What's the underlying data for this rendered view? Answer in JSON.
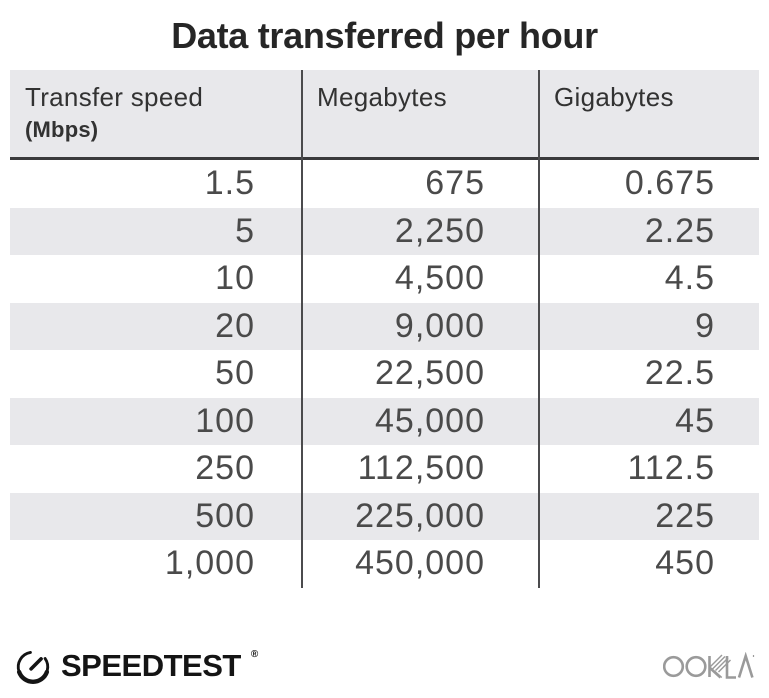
{
  "title": "Data transferred per hour",
  "table": {
    "columns": [
      {
        "label": "Transfer speed",
        "sublabel": "(Mbps)"
      },
      {
        "label": "Megabytes",
        "sublabel": ""
      },
      {
        "label": "Gigabytes",
        "sublabel": ""
      }
    ],
    "rows": [
      [
        "1.5",
        "675",
        "0.675"
      ],
      [
        "5",
        "2,250",
        "2.25"
      ],
      [
        "10",
        "4,500",
        "4.5"
      ],
      [
        "20",
        "9,000",
        "9"
      ],
      [
        "50",
        "22,500",
        "22.5"
      ],
      [
        "100",
        "45,000",
        "45"
      ],
      [
        "250",
        "112,500",
        "112.5"
      ],
      [
        "500",
        "225,000",
        "225"
      ],
      [
        "1,000",
        "450,000",
        "450"
      ]
    ]
  },
  "footer": {
    "brand": "SPEEDTEST",
    "brand_mark": "®",
    "company": "OOKLA"
  },
  "colors": {
    "header_bg": "#e8e8eb",
    "stripe": "#e8e8eb",
    "divider": "#4b4b4d",
    "header_border": "#3a3a3c",
    "title_text": "#262626",
    "data_text": "#4a4a4a",
    "brand_black": "#141414",
    "ookla_gray": "#9a9a9a"
  },
  "chart_data": {
    "type": "table",
    "title": "Data transferred per hour",
    "columns": [
      "Transfer speed (Mbps)",
      "Megabytes",
      "Gigabytes"
    ],
    "rows": [
      [
        1.5,
        675,
        0.675
      ],
      [
        5,
        2250,
        2.25
      ],
      [
        10,
        4500,
        4.5
      ],
      [
        20,
        9000,
        9
      ],
      [
        50,
        22500,
        22.5
      ],
      [
        100,
        45000,
        45
      ],
      [
        250,
        112500,
        112.5
      ],
      [
        500,
        225000,
        225
      ],
      [
        1000,
        450000,
        450
      ]
    ],
    "layout": {
      "striped_rows": true,
      "header_background": "#e8e8eb",
      "column_dividers": true
    }
  }
}
